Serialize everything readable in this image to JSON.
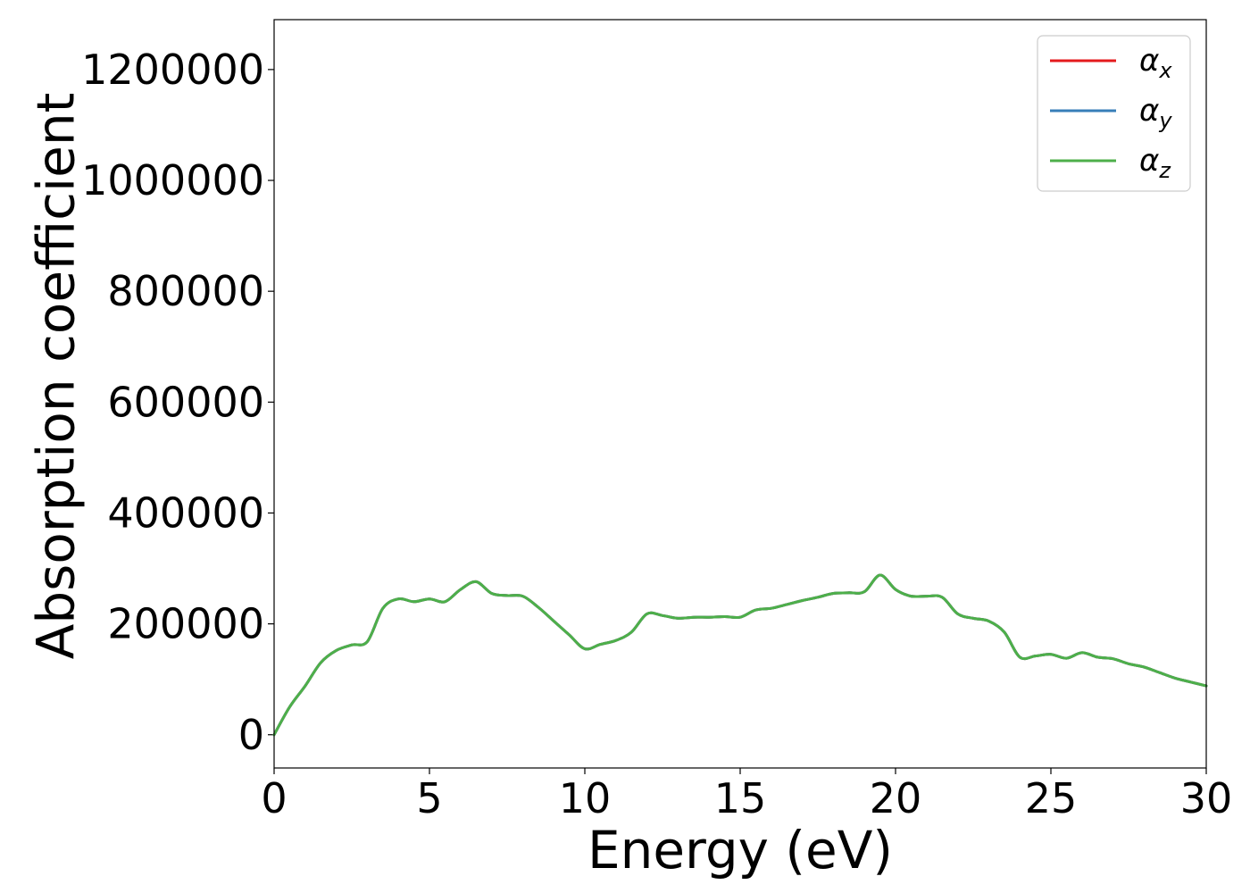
{
  "chart_data": {
    "type": "line",
    "title": "",
    "xlabel": "Energy (eV)",
    "ylabel": "Absorption coefficient",
    "xlim": [
      0,
      30
    ],
    "ylim": [
      -60000,
      1290000
    ],
    "xticks": [
      0,
      5,
      10,
      15,
      20,
      25,
      30
    ],
    "xtick_labels": [
      "0",
      "5",
      "10",
      "15",
      "20",
      "25",
      "30"
    ],
    "yticks": [
      0,
      200000,
      400000,
      600000,
      800000,
      1000000,
      1200000
    ],
    "ytick_labels": [
      "0",
      "200000",
      "400000",
      "600000",
      "800000",
      "1000000",
      "1200000"
    ],
    "grid": false,
    "legend_position": "top-right",
    "series": [
      {
        "name": "αx",
        "legend_symbol": "α",
        "legend_sub": "x",
        "color": "#e41a1c"
      },
      {
        "name": "αy",
        "legend_symbol": "α",
        "legend_sub": "y",
        "color": "#377eb8"
      },
      {
        "name": "αz",
        "legend_symbol": "α",
        "legend_sub": "z",
        "color": "#4daf4a"
      }
    ],
    "x": [
      0,
      0.5,
      1.0,
      1.5,
      2.0,
      2.5,
      3.0,
      3.5,
      4.0,
      4.5,
      5.0,
      5.5,
      6.0,
      6.5,
      7.0,
      7.5,
      8.0,
      8.5,
      9.0,
      9.5,
      10.0,
      10.5,
      11.0,
      11.5,
      12.0,
      12.5,
      13.0,
      13.5,
      14.0,
      14.5,
      15.0,
      15.5,
      16.0,
      16.5,
      17.0,
      17.5,
      18.0,
      18.5,
      19.0,
      19.5,
      20.0,
      20.5,
      21.0,
      21.5,
      22.0,
      22.5,
      23.0,
      23.5,
      24.0,
      24.5,
      25.0,
      25.5,
      26.0,
      26.5,
      27.0,
      27.5,
      28.0,
      28.5,
      29.0,
      29.5,
      30.0
    ],
    "y": [
      0,
      50000,
      88000,
      130000,
      152000,
      162000,
      168000,
      228000,
      245000,
      240000,
      245000,
      240000,
      262000,
      276000,
      255000,
      251000,
      250000,
      230000,
      205000,
      180000,
      155000,
      163000,
      170000,
      185000,
      218000,
      215000,
      210000,
      212000,
      212000,
      213000,
      212000,
      225000,
      228000,
      235000,
      242000,
      248000,
      255000,
      256000,
      258000,
      288000,
      262000,
      250000,
      250000,
      248000,
      218000,
      210000,
      205000,
      185000,
      140000,
      142000,
      145000,
      138000,
      148000,
      140000,
      137000,
      128000,
      122000,
      112000,
      102000,
      95000,
      88000
    ]
  }
}
